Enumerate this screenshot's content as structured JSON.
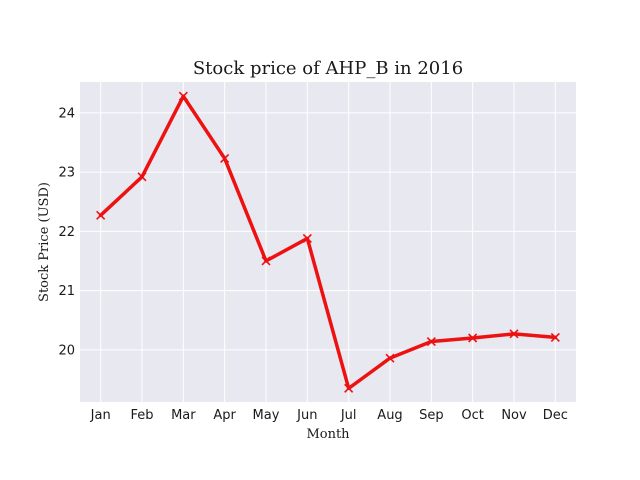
{
  "chart_data": {
    "type": "line",
    "title": "Stock price of AHP_B in 2016",
    "xlabel": "Month",
    "ylabel": "Stock Price (USD)",
    "categories": [
      "Jan",
      "Feb",
      "Mar",
      "Apr",
      "May",
      "Jun",
      "Jul",
      "Aug",
      "Sep",
      "Oct",
      "Nov",
      "Dec"
    ],
    "series": [
      {
        "values": [
          22.27,
          22.92,
          24.28,
          23.23,
          21.5,
          21.88,
          19.35,
          19.86,
          20.14,
          20.2,
          20.27,
          20.21
        ],
        "color": "#ee1111",
        "marker": "x"
      }
    ],
    "yticks": [
      20,
      21,
      22,
      23,
      24
    ],
    "ylim": [
      19.12,
      24.52
    ],
    "grid": true,
    "background": "#e8e8f0"
  }
}
